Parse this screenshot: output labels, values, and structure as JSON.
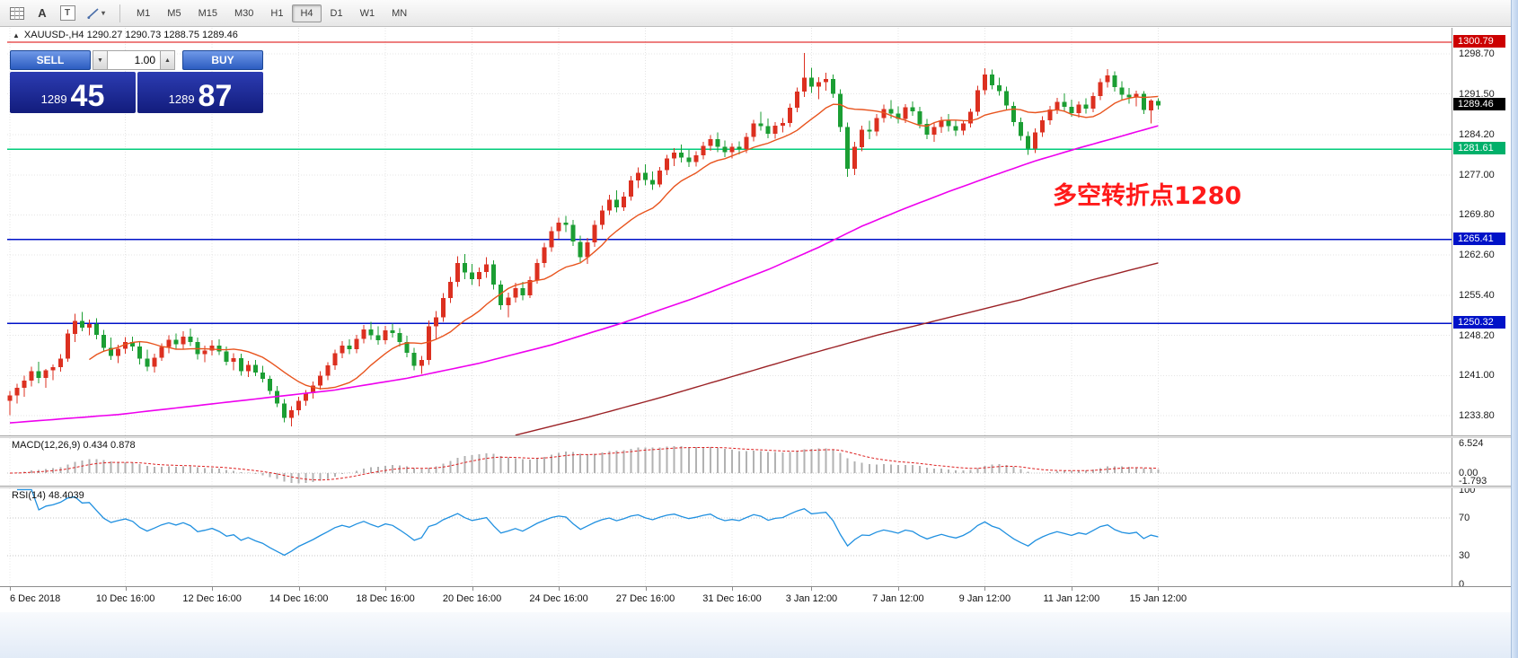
{
  "toolbar": {
    "font_tool_label": "A",
    "text_tool_label": "T",
    "shapes_caret": "▾",
    "timeframes": [
      "M1",
      "M5",
      "M15",
      "M30",
      "H1",
      "H4",
      "D1",
      "W1",
      "MN"
    ],
    "active_timeframe": "H4"
  },
  "quote_header": {
    "marker": "▲",
    "text": "XAUUSD-,H4  1290.27 1290.73 1288.75 1289.46"
  },
  "trade_panel": {
    "sell_label": "SELL",
    "buy_label": "BUY",
    "volume": "1.00",
    "volume_dropdown_glyph": "▼",
    "volume_up_glyph": "▲",
    "bid_big": "1289",
    "bid_pips": "45",
    "ask_big": "1289",
    "ask_pips": "87"
  },
  "annotation": {
    "text": "多空转折点1280",
    "color": "#ff1a1a"
  },
  "macd_panel": {
    "label": "MACD(12,26,9) 0.434 0.878",
    "scale_labels": [
      "6.524",
      "0.00",
      "-1.793"
    ],
    "histogram_color": "#b2b2b2",
    "signal_color": "#dd2020"
  },
  "rsi_panel": {
    "label": "RSI(14) 48.4039",
    "scale_labels": [
      "100",
      "70",
      "30",
      "0"
    ],
    "line_color": "#2090e0",
    "levels": [
      70,
      30
    ]
  },
  "time_axis": {
    "labels": [
      {
        "text": "6 Dec 2018",
        "bar": 0
      },
      {
        "text": "10 Dec 16:00",
        "bar": 16
      },
      {
        "text": "12 Dec 16:00",
        "bar": 28
      },
      {
        "text": "14 Dec 16:00",
        "bar": 40
      },
      {
        "text": "18 Dec 16:00",
        "bar": 52
      },
      {
        "text": "20 Dec 16:00",
        "bar": 64
      },
      {
        "text": "24 Dec 16:00",
        "bar": 76
      },
      {
        "text": "27 Dec 16:00",
        "bar": 88
      },
      {
        "text": "31 Dec 16:00",
        "bar": 100
      },
      {
        "text": "3 Jan 12:00",
        "bar": 111
      },
      {
        "text": "7 Jan 12:00",
        "bar": 123
      },
      {
        "text": "9 Jan 12:00",
        "bar": 135
      },
      {
        "text": "11 Jan 12:00",
        "bar": 147
      },
      {
        "text": "15 Jan 12:00",
        "bar": 159
      }
    ]
  },
  "chart_data": {
    "type": "candlestick",
    "symbol": "XAUUSD-",
    "timeframe": "H4",
    "title": "XAUUSD- H4 gold chart with MACD and RSI",
    "bull_color": "#dc3020",
    "bear_color": "#1b9e33",
    "ylim": [
      1230.26,
      1303.37
    ],
    "y_ticks": [
      1298.7,
      1291.5,
      1284.2,
      1277.0,
      1269.8,
      1262.6,
      1255.4,
      1248.2,
      1241.0,
      1233.8
    ],
    "last_price": 1289.46,
    "last_price_tag_bg": "#000000",
    "hlines": [
      {
        "price": 1300.79,
        "color": "#dd0000",
        "tag_bg": "#cc0000"
      },
      {
        "price": 1281.61,
        "color": "#00cc7a",
        "tag_bg": "#00b06a"
      },
      {
        "price": 1265.41,
        "color": "#0012c8",
        "tag_bg": "#0012c8"
      },
      {
        "price": 1250.32,
        "color": "#0012c8",
        "tag_bg": "#0012c8"
      }
    ],
    "moving_averages": [
      {
        "name": "fast",
        "type": "sma",
        "period": 12,
        "color": "#e8541e"
      },
      {
        "name": "mid",
        "type": "points",
        "color": "#ee00ee",
        "points": [
          [
            0,
            1232.5
          ],
          [
            15,
            1234.0
          ],
          [
            30,
            1236.2
          ],
          [
            45,
            1238.4
          ],
          [
            55,
            1240.5
          ],
          [
            65,
            1243.2
          ],
          [
            75,
            1246.5
          ],
          [
            85,
            1250.5
          ],
          [
            95,
            1255.0
          ],
          [
            105,
            1260.0
          ],
          [
            112,
            1264.0
          ],
          [
            118,
            1267.8
          ],
          [
            124,
            1271.0
          ],
          [
            130,
            1274.0
          ],
          [
            136,
            1276.8
          ],
          [
            142,
            1279.5
          ],
          [
            148,
            1281.8
          ],
          [
            153,
            1283.6
          ],
          [
            159,
            1285.8
          ]
        ]
      },
      {
        "name": "slow",
        "type": "points",
        "color": "#9b2226",
        "points": [
          [
            70,
            1230.3
          ],
          [
            80,
            1233.5
          ],
          [
            90,
            1237.0
          ],
          [
            100,
            1240.8
          ],
          [
            110,
            1244.6
          ],
          [
            120,
            1248.2
          ],
          [
            130,
            1251.4
          ],
          [
            140,
            1254.6
          ],
          [
            150,
            1258.2
          ],
          [
            159,
            1261.2
          ]
        ]
      }
    ],
    "indicators": {
      "macd": {
        "fast": 12,
        "slow": 26,
        "signal": 9
      },
      "rsi": {
        "period": 14
      }
    },
    "ohlc": [
      [
        1236.5,
        1238.2,
        1233.9,
        1237.4
      ],
      [
        1237.4,
        1239.5,
        1236.0,
        1238.8
      ],
      [
        1238.8,
        1241.0,
        1237.2,
        1240.1
      ],
      [
        1240.1,
        1242.6,
        1239.0,
        1241.8
      ],
      [
        1241.8,
        1243.5,
        1239.6,
        1240.6
      ],
      [
        1240.6,
        1242.2,
        1238.8,
        1241.9
      ],
      [
        1241.9,
        1243.0,
        1240.2,
        1242.5
      ],
      [
        1242.5,
        1244.8,
        1241.7,
        1244.0
      ],
      [
        1244.0,
        1249.3,
        1243.5,
        1248.5
      ],
      [
        1248.5,
        1252.1,
        1247.0,
        1250.8
      ],
      [
        1250.8,
        1252.4,
        1248.9,
        1249.6
      ],
      [
        1249.6,
        1251.0,
        1248.2,
        1250.2
      ],
      [
        1250.2,
        1251.3,
        1247.5,
        1248.3
      ],
      [
        1248.3,
        1249.2,
        1245.2,
        1246.0
      ],
      [
        1246.0,
        1247.8,
        1243.8,
        1244.5
      ],
      [
        1244.5,
        1246.5,
        1243.2,
        1245.8
      ],
      [
        1245.8,
        1247.9,
        1244.9,
        1247.0
      ],
      [
        1247.0,
        1248.0,
        1245.4,
        1246.2
      ],
      [
        1246.2,
        1247.1,
        1243.0,
        1244.0
      ],
      [
        1244.0,
        1245.6,
        1241.8,
        1242.6
      ],
      [
        1242.6,
        1244.9,
        1241.5,
        1244.2
      ],
      [
        1244.2,
        1246.8,
        1243.6,
        1246.1
      ],
      [
        1246.1,
        1248.2,
        1245.0,
        1247.4
      ],
      [
        1247.4,
        1248.5,
        1245.8,
        1246.6
      ],
      [
        1246.6,
        1248.9,
        1245.7,
        1248.0
      ],
      [
        1248.0,
        1249.4,
        1246.3,
        1247.0
      ],
      [
        1247.0,
        1247.8,
        1243.9,
        1244.8
      ],
      [
        1244.8,
        1246.4,
        1243.4,
        1245.5
      ],
      [
        1245.5,
        1247.3,
        1244.6,
        1246.4
      ],
      [
        1246.4,
        1247.5,
        1244.7,
        1245.3
      ],
      [
        1245.3,
        1246.2,
        1242.8,
        1243.5
      ],
      [
        1243.5,
        1245.0,
        1241.9,
        1244.1
      ],
      [
        1244.1,
        1244.9,
        1241.0,
        1241.8
      ],
      [
        1241.8,
        1243.6,
        1240.7,
        1242.9
      ],
      [
        1242.9,
        1243.8,
        1240.9,
        1241.5
      ],
      [
        1241.5,
        1242.7,
        1239.8,
        1240.4
      ],
      [
        1240.4,
        1241.0,
        1237.6,
        1238.2
      ],
      [
        1238.2,
        1239.1,
        1235.3,
        1236.0
      ],
      [
        1236.0,
        1236.8,
        1232.6,
        1233.4
      ],
      [
        1233.4,
        1235.5,
        1231.9,
        1234.8
      ],
      [
        1234.8,
        1237.2,
        1233.9,
        1236.5
      ],
      [
        1236.5,
        1238.4,
        1235.6,
        1237.8
      ],
      [
        1237.8,
        1239.9,
        1236.9,
        1239.2
      ],
      [
        1239.2,
        1241.8,
        1238.5,
        1241.0
      ],
      [
        1241.0,
        1243.4,
        1240.2,
        1242.8
      ],
      [
        1242.8,
        1245.6,
        1242.0,
        1245.0
      ],
      [
        1245.0,
        1247.2,
        1244.1,
        1246.4
      ],
      [
        1246.4,
        1247.5,
        1244.8,
        1245.7
      ],
      [
        1245.7,
        1248.3,
        1245.0,
        1247.6
      ],
      [
        1247.6,
        1250.1,
        1246.8,
        1249.3
      ],
      [
        1249.3,
        1250.6,
        1247.4,
        1248.2
      ],
      [
        1248.2,
        1249.8,
        1246.5,
        1247.3
      ],
      [
        1247.3,
        1249.9,
        1246.6,
        1249.1
      ],
      [
        1249.1,
        1250.3,
        1247.8,
        1248.6
      ],
      [
        1248.6,
        1249.5,
        1246.2,
        1247.0
      ],
      [
        1247.0,
        1248.1,
        1244.3,
        1245.1
      ],
      [
        1245.1,
        1246.0,
        1241.9,
        1242.7
      ],
      [
        1242.7,
        1244.5,
        1241.3,
        1243.8
      ],
      [
        1243.8,
        1250.9,
        1242.9,
        1249.8
      ],
      [
        1249.8,
        1252.6,
        1247.5,
        1251.4
      ],
      [
        1251.4,
        1255.8,
        1250.6,
        1254.9
      ],
      [
        1254.9,
        1258.7,
        1254.0,
        1257.8
      ],
      [
        1257.8,
        1262.4,
        1256.9,
        1261.2
      ],
      [
        1261.2,
        1262.8,
        1258.3,
        1259.5
      ],
      [
        1259.5,
        1261.0,
        1257.2,
        1258.3
      ],
      [
        1258.3,
        1260.4,
        1257.0,
        1259.6
      ],
      [
        1259.6,
        1262.2,
        1258.5,
        1260.9
      ],
      [
        1260.9,
        1261.7,
        1256.4,
        1257.3
      ],
      [
        1257.3,
        1258.0,
        1252.8,
        1253.6
      ],
      [
        1253.6,
        1255.9,
        1251.4,
        1255.0
      ],
      [
        1255.0,
        1257.6,
        1254.1,
        1256.7
      ],
      [
        1256.7,
        1257.8,
        1254.5,
        1255.4
      ],
      [
        1255.4,
        1258.8,
        1254.9,
        1258.1
      ],
      [
        1258.1,
        1261.9,
        1257.5,
        1261.2
      ],
      [
        1261.2,
        1264.8,
        1260.4,
        1264.0
      ],
      [
        1264.0,
        1267.7,
        1263.2,
        1266.9
      ],
      [
        1266.9,
        1269.3,
        1265.5,
        1268.4
      ],
      [
        1268.4,
        1269.6,
        1266.7,
        1268.0
      ],
      [
        1268.0,
        1268.9,
        1264.2,
        1265.0
      ],
      [
        1265.0,
        1266.1,
        1261.3,
        1262.2
      ],
      [
        1262.2,
        1265.7,
        1261.0,
        1264.9
      ],
      [
        1264.9,
        1268.8,
        1264.1,
        1268.0
      ],
      [
        1268.0,
        1271.5,
        1267.2,
        1270.6
      ],
      [
        1270.6,
        1273.4,
        1269.8,
        1272.5
      ],
      [
        1272.5,
        1274.2,
        1270.3,
        1271.2
      ],
      [
        1271.2,
        1273.9,
        1270.5,
        1273.1
      ],
      [
        1273.1,
        1276.8,
        1272.4,
        1276.0
      ],
      [
        1276.0,
        1278.3,
        1274.6,
        1277.4
      ],
      [
        1277.4,
        1278.9,
        1275.1,
        1276.1
      ],
      [
        1276.1,
        1277.6,
        1274.3,
        1275.3
      ],
      [
        1275.3,
        1278.4,
        1274.8,
        1277.8
      ],
      [
        1277.8,
        1280.6,
        1277.0,
        1279.9
      ],
      [
        1279.9,
        1281.8,
        1278.6,
        1281.0
      ],
      [
        1281.0,
        1282.4,
        1279.2,
        1280.1
      ],
      [
        1280.1,
        1281.5,
        1278.4,
        1279.3
      ],
      [
        1279.3,
        1281.2,
        1278.5,
        1280.5
      ],
      [
        1280.5,
        1282.9,
        1279.8,
        1282.2
      ],
      [
        1282.2,
        1284.1,
        1281.3,
        1283.4
      ],
      [
        1283.4,
        1284.6,
        1281.1,
        1282.0
      ],
      [
        1282.0,
        1283.2,
        1280.2,
        1281.1
      ],
      [
        1281.1,
        1282.7,
        1279.9,
        1282.0
      ],
      [
        1282.0,
        1283.0,
        1280.7,
        1281.6
      ],
      [
        1281.6,
        1284.5,
        1280.9,
        1283.8
      ],
      [
        1283.8,
        1286.9,
        1283.0,
        1286.2
      ],
      [
        1286.2,
        1288.3,
        1284.9,
        1285.7
      ],
      [
        1285.7,
        1287.1,
        1283.6,
        1284.4
      ],
      [
        1284.4,
        1286.5,
        1283.5,
        1285.8
      ],
      [
        1285.8,
        1287.2,
        1284.6,
        1286.3
      ],
      [
        1286.3,
        1289.8,
        1285.6,
        1289.0
      ],
      [
        1289.0,
        1292.7,
        1288.2,
        1291.9
      ],
      [
        1291.9,
        1298.9,
        1291.0,
        1294.4
      ],
      [
        1294.4,
        1296.2,
        1291.7,
        1292.8
      ],
      [
        1292.8,
        1294.5,
        1290.6,
        1293.6
      ],
      [
        1293.6,
        1295.3,
        1292.1,
        1294.2
      ],
      [
        1294.2,
        1295.0,
        1290.8,
        1291.5
      ],
      [
        1291.5,
        1292.3,
        1284.7,
        1285.6
      ],
      [
        1285.6,
        1286.4,
        1276.6,
        1278.1
      ],
      [
        1278.1,
        1282.9,
        1277.0,
        1282.0
      ],
      [
        1282.0,
        1285.8,
        1281.2,
        1285.1
      ],
      [
        1285.1,
        1286.7,
        1283.4,
        1284.8
      ],
      [
        1284.8,
        1287.9,
        1284.0,
        1287.2
      ],
      [
        1287.2,
        1289.6,
        1286.4,
        1288.8
      ],
      [
        1288.8,
        1290.4,
        1287.1,
        1288.0
      ],
      [
        1288.0,
        1289.3,
        1286.2,
        1287.0
      ],
      [
        1287.0,
        1289.7,
        1286.3,
        1289.1
      ],
      [
        1289.1,
        1290.2,
        1287.6,
        1288.4
      ],
      [
        1288.4,
        1289.2,
        1285.3,
        1286.1
      ],
      [
        1286.1,
        1287.0,
        1283.4,
        1284.2
      ],
      [
        1284.2,
        1286.3,
        1282.9,
        1285.6
      ],
      [
        1285.6,
        1287.4,
        1284.5,
        1286.8
      ],
      [
        1286.8,
        1287.9,
        1284.8,
        1285.7
      ],
      [
        1285.7,
        1286.8,
        1284.0,
        1284.9
      ],
      [
        1284.9,
        1286.8,
        1284.1,
        1286.2
      ],
      [
        1286.2,
        1288.9,
        1285.5,
        1288.3
      ],
      [
        1288.3,
        1293.0,
        1287.6,
        1292.2
      ],
      [
        1292.2,
        1296.1,
        1291.4,
        1295.0
      ],
      [
        1295.0,
        1295.9,
        1292.3,
        1293.1
      ],
      [
        1293.1,
        1294.4,
        1291.2,
        1292.0
      ],
      [
        1292.0,
        1292.8,
        1288.6,
        1289.4
      ],
      [
        1289.4,
        1290.1,
        1285.7,
        1286.5
      ],
      [
        1286.5,
        1287.3,
        1283.2,
        1284.0
      ],
      [
        1284.0,
        1284.8,
        1280.6,
        1281.7
      ],
      [
        1281.7,
        1285.3,
        1280.9,
        1284.6
      ],
      [
        1284.6,
        1287.5,
        1283.8,
        1286.8
      ],
      [
        1286.8,
        1289.4,
        1286.0,
        1288.7
      ],
      [
        1288.7,
        1290.8,
        1287.9,
        1290.1
      ],
      [
        1290.1,
        1291.6,
        1288.3,
        1289.2
      ],
      [
        1289.2,
        1290.5,
        1287.4,
        1288.1
      ],
      [
        1288.1,
        1290.2,
        1287.3,
        1289.6
      ],
      [
        1289.6,
        1290.7,
        1288.0,
        1288.9
      ],
      [
        1288.9,
        1291.8,
        1288.2,
        1291.1
      ],
      [
        1291.1,
        1294.3,
        1290.4,
        1293.6
      ],
      [
        1293.6,
        1296.0,
        1292.7,
        1294.8
      ],
      [
        1294.8,
        1295.6,
        1291.9,
        1292.7
      ],
      [
        1292.7,
        1293.8,
        1290.5,
        1291.4
      ],
      [
        1291.4,
        1292.6,
        1289.8,
        1290.9
      ],
      [
        1290.9,
        1292.1,
        1289.3,
        1291.5
      ],
      [
        1291.5,
        1292.0,
        1287.9,
        1288.6
      ],
      [
        1288.6,
        1290.6,
        1286.2,
        1290.3
      ],
      [
        1290.27,
        1290.73,
        1288.75,
        1289.46
      ]
    ]
  }
}
